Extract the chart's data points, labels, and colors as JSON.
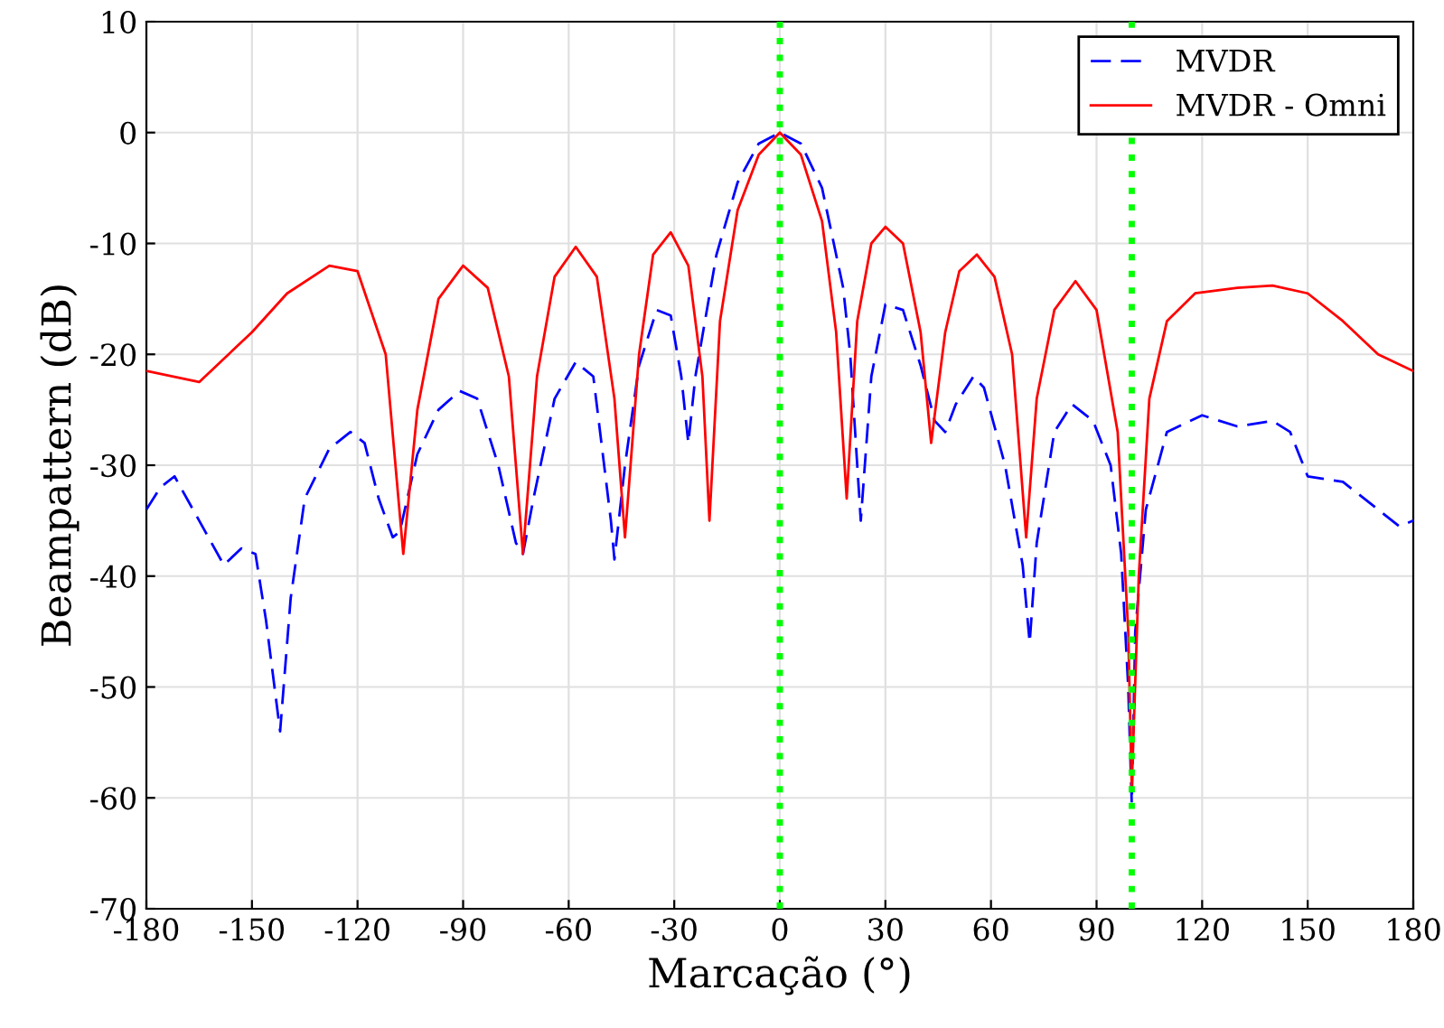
{
  "chart_data": {
    "type": "line",
    "xlabel": "Marcação (°)",
    "ylabel": "Beampattern (dB)",
    "xlim": [
      -180,
      180
    ],
    "ylim": [
      -70,
      10
    ],
    "xticks": [
      -180,
      -150,
      -120,
      -90,
      -60,
      -30,
      0,
      30,
      60,
      90,
      120,
      150,
      180
    ],
    "yticks": [
      -70,
      -60,
      -50,
      -40,
      -30,
      -20,
      -10,
      0,
      10
    ],
    "grid": true,
    "legend": "top right",
    "marker": "none",
    "ref_lines": [
      {
        "axis": "x",
        "value": 0,
        "color": "#00ff00",
        "line_style": "dotted"
      },
      {
        "axis": "x",
        "value": 100,
        "color": "#00ff00",
        "line_style": "dotted"
      }
    ],
    "series": [
      {
        "name": "MVDR",
        "color": "#0000ff",
        "line_style": "dashed",
        "x": [
          -180,
          -176,
          -172,
          -165,
          -158,
          -153,
          -149,
          -146,
          -142,
          -139,
          -135,
          -128,
          -122,
          -118,
          -114,
          -110,
          -108,
          -103,
          -97,
          -91,
          -86,
          -80,
          -75,
          -73,
          -70,
          -64,
          -58,
          -53,
          -48,
          -47,
          -44,
          -40,
          -35,
          -31,
          -28,
          -26,
          -24,
          -18,
          -12,
          -6,
          0,
          6,
          12,
          18,
          20,
          22,
          23,
          26,
          30,
          35,
          40,
          44,
          47,
          50,
          55,
          58,
          64,
          69,
          71,
          73,
          78,
          83,
          89,
          94,
          97,
          99,
          100,
          101,
          104,
          110,
          120,
          130,
          140,
          145,
          150,
          160,
          170,
          176,
          180
        ],
        "values": [
          -34,
          -32,
          -31,
          -35,
          -39,
          -37.5,
          -38,
          -44,
          -54,
          -42,
          -33,
          -28.5,
          -27,
          -28,
          -33,
          -36.5,
          -36,
          -29,
          -25,
          -23.3,
          -24,
          -30,
          -37,
          -38,
          -33,
          -24,
          -20.7,
          -22,
          -35,
          -38.5,
          -30,
          -21,
          -16,
          -16.5,
          -22,
          -28,
          -22,
          -11,
          -4.5,
          -1,
          0,
          -1,
          -5,
          -14,
          -20,
          -30,
          -35,
          -22,
          -15.5,
          -16,
          -21,
          -26,
          -27,
          -24.5,
          -22,
          -23,
          -30,
          -39,
          -46,
          -37,
          -27,
          -24.5,
          -26,
          -30,
          -38,
          -50,
          -60.5,
          -45,
          -34,
          -27,
          -25.5,
          -26.5,
          -26,
          -27,
          -31,
          -31.5,
          -34,
          -35.5,
          -35
        ]
      },
      {
        "name": "MVDR - Omni",
        "color": "#ff0000",
        "line_style": "solid",
        "x": [
          -180,
          -165,
          -150,
          -140,
          -128,
          -120,
          -112,
          -107,
          -103,
          -97,
          -90,
          -83,
          -77,
          -73,
          -69,
          -64,
          -58,
          -52,
          -47,
          -44,
          -40,
          -36,
          -31,
          -26,
          -22,
          -20,
          -17,
          -12,
          -6,
          0,
          6,
          12,
          16,
          19,
          22,
          26,
          30,
          35,
          40,
          43,
          47,
          51,
          56,
          61,
          66,
          70,
          73,
          78,
          84,
          90,
          96,
          99,
          100,
          102,
          105,
          110,
          118,
          130,
          140,
          150,
          160,
          170,
          180
        ],
        "values": [
          -21.5,
          -22.5,
          -18,
          -14.5,
          -12,
          -12.5,
          -20,
          -38,
          -25,
          -15,
          -12,
          -14,
          -22,
          -38,
          -22,
          -13,
          -10.3,
          -13,
          -24,
          -36.5,
          -20,
          -11,
          -9,
          -12,
          -22,
          -35,
          -17,
          -7,
          -2,
          0,
          -2,
          -8,
          -18,
          -33,
          -17,
          -10,
          -8.5,
          -10,
          -18,
          -28,
          -18,
          -12.5,
          -11,
          -13,
          -20,
          -36.5,
          -24,
          -16,
          -13.4,
          -16,
          -27,
          -45,
          -59,
          -40,
          -24,
          -17,
          -14.5,
          -14,
          -13.8,
          -14.5,
          -17,
          -20,
          -21.5
        ]
      }
    ]
  }
}
